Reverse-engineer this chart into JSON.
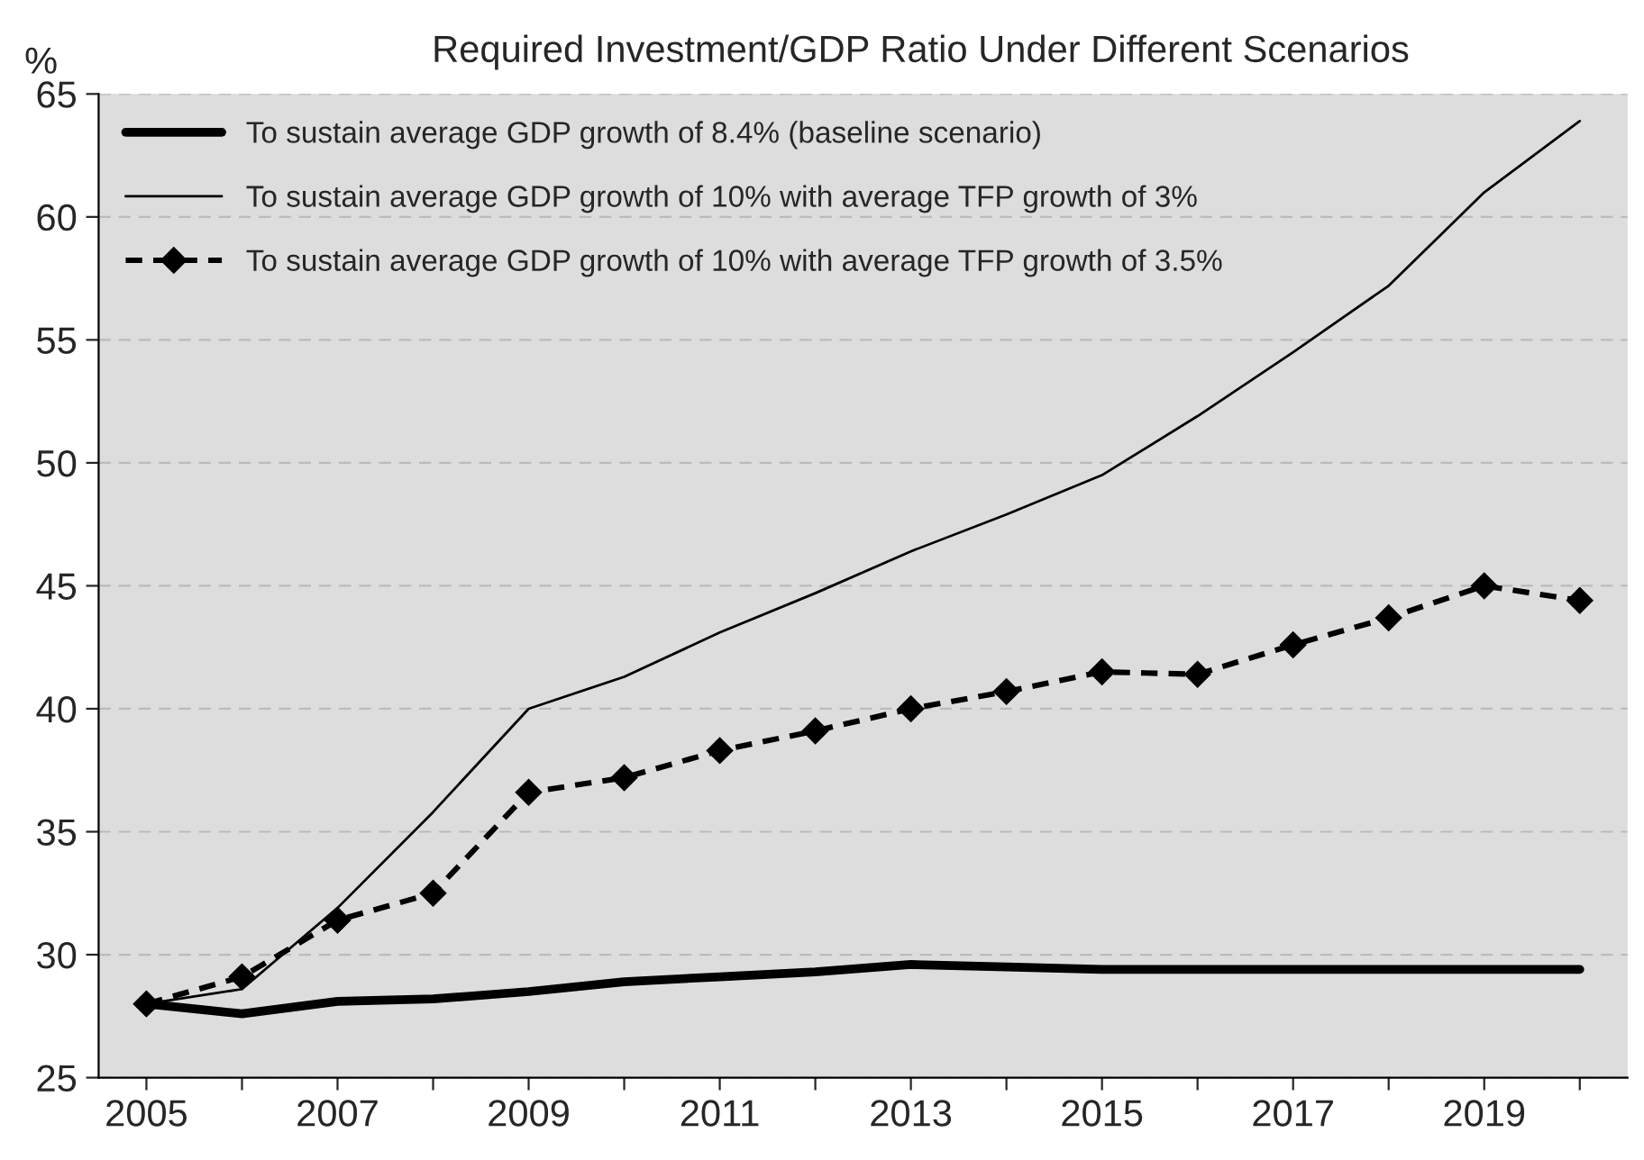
{
  "chart_data": {
    "type": "line",
    "title": "Required Investment/GDP Ratio Under Different Scenarios",
    "ylabel": "%",
    "categories": [
      "2005",
      null,
      "2007",
      null,
      "2009",
      null,
      "2011",
      null,
      "2013",
      null,
      "2015",
      null,
      "2017",
      null,
      "2019",
      null
    ],
    "series": [
      {
        "name": "To sustain average GDP growth of 8.4% (baseline scenario)",
        "color": "#000000",
        "line_style": "solid",
        "marker": "none",
        "values": [
          28.0,
          27.6,
          28.1,
          28.2,
          28.5,
          28.9,
          29.1,
          29.3,
          29.6,
          29.5,
          29.4,
          29.4,
          29.4,
          29.4,
          29.4,
          29.4
        ]
      },
      {
        "name": "To sustain average GDP growth of 10% with average TFP growth of 3%",
        "color": "#000000",
        "line_style": "solid",
        "marker": "none",
        "values": [
          28.0,
          28.6,
          31.9,
          35.8,
          40.0,
          41.3,
          43.1,
          44.7,
          46.4,
          47.9,
          49.5,
          51.9,
          54.5,
          57.2,
          61.0,
          63.9
        ]
      },
      {
        "name": "To sustain average GDP growth of 10% with average TFP growth of 3.5%",
        "color": "#000000",
        "line_style": "dashed",
        "marker": "diamond",
        "values": [
          28.0,
          29.1,
          31.4,
          32.5,
          36.6,
          37.2,
          38.3,
          39.1,
          40.0,
          40.7,
          41.5,
          41.4,
          42.6,
          43.7,
          45.0,
          44.4
        ]
      }
    ],
    "ylim": [
      25,
      65
    ],
    "yticks": [
      25,
      30,
      35,
      40,
      45,
      50,
      55,
      60,
      65
    ],
    "grid": "y",
    "legend": "top left"
  }
}
